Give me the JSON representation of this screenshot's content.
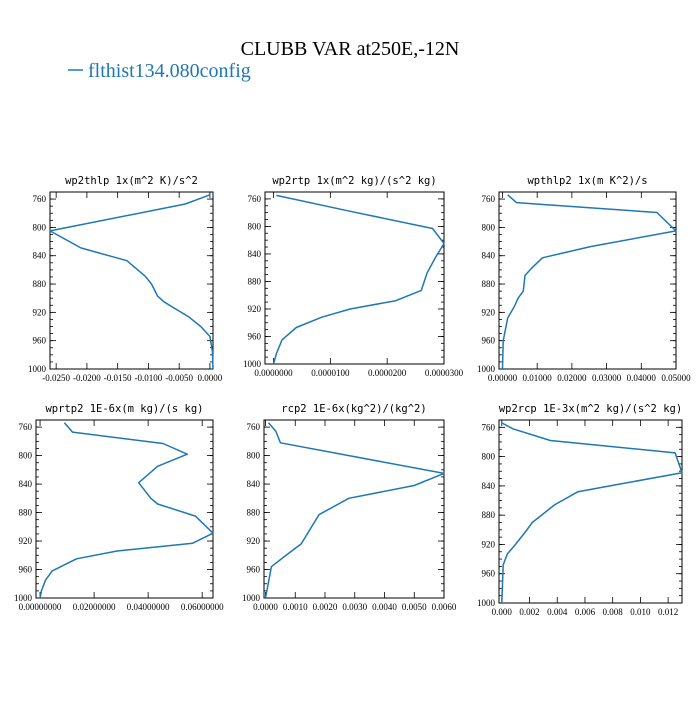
{
  "figure": {
    "title": "CLUBB VAR at250E,-12N",
    "legend_label": "flthist134.080config",
    "series_color": "#1f77b4"
  },
  "chart_data": [
    {
      "type": "line",
      "title": "wp2thlp   1x(m^2 K)/s^2",
      "xlim": [
        -0.026,
        0.0005
      ],
      "ylim": [
        1000,
        750
      ],
      "xticks": [
        -0.025,
        -0.02,
        -0.015,
        -0.01,
        -0.005,
        0.0
      ],
      "xtick_labels": [
        "-0.0250",
        "-0.0200",
        "-0.0150",
        "-0.0100",
        "-0.0050",
        "0.0000"
      ],
      "yticks": [
        760,
        800,
        840,
        880,
        920,
        960,
        1000
      ],
      "ytick_labels": [
        "760",
        "800",
        "840",
        "880",
        "920",
        "960",
        "1000"
      ],
      "points": [
        [
          0.0,
          754
        ],
        [
          -0.004,
          767
        ],
        [
          -0.026,
          805
        ],
        [
          -0.021,
          829
        ],
        [
          -0.0135,
          847
        ],
        [
          -0.0105,
          869
        ],
        [
          -0.0095,
          880
        ],
        [
          -0.0085,
          897
        ],
        [
          -0.0075,
          905
        ],
        [
          -0.006,
          913
        ],
        [
          -0.0035,
          926
        ],
        [
          -0.0015,
          940
        ],
        [
          0.0,
          954
        ],
        [
          0.0004,
          975
        ],
        [
          0.0005,
          1000
        ]
      ]
    },
    {
      "type": "line",
      "title": "wp2rtp  1x(m^2 kg)/(s^2 kg)",
      "xlim": [
        -1.5e-06,
        3e-05
      ],
      "ylim": [
        1000,
        750
      ],
      "xticks": [
        0.0,
        1e-05,
        2e-05,
        3e-05
      ],
      "xtick_labels": [
        "0.0000000",
        "0.0000100",
        "0.0000200",
        "0.0000300"
      ],
      "yticks": [
        760,
        800,
        840,
        880,
        920,
        960,
        1000
      ],
      "ytick_labels": [
        "760",
        "800",
        "840",
        "880",
        "920",
        "960",
        "1000"
      ],
      "points": [
        [
          5e-07,
          755
        ],
        [
          1.35e-05,
          778
        ],
        [
          2.8e-05,
          803
        ],
        [
          3e-05,
          825
        ],
        [
          2.85e-05,
          845
        ],
        [
          2.7e-05,
          868
        ],
        [
          2.6e-05,
          893
        ],
        [
          2.15e-05,
          908
        ],
        [
          1.35e-05,
          920
        ],
        [
          8.5e-06,
          932
        ],
        [
          4e-06,
          947
        ],
        [
          1.5e-06,
          965
        ],
        [
          5e-07,
          985
        ],
        [
          0.0,
          1000
        ]
      ]
    },
    {
      "type": "line",
      "title": "wpthlp2  1x(m K^2)/s",
      "xlim": [
        -0.001,
        0.05
      ],
      "ylim": [
        1000,
        750
      ],
      "xticks": [
        0.0,
        0.01,
        0.02,
        0.03,
        0.04,
        0.05
      ],
      "xtick_labels": [
        "0.00000",
        "0.01000",
        "0.02000",
        "0.03000",
        "0.04000",
        "0.05000"
      ],
      "yticks": [
        760,
        800,
        840,
        880,
        920,
        960,
        1000
      ],
      "ytick_labels": [
        "760",
        "800",
        "840",
        "880",
        "920",
        "960",
        "1000"
      ],
      "points": [
        [
          0.0015,
          754
        ],
        [
          0.004,
          765
        ],
        [
          0.0445,
          779
        ],
        [
          0.05,
          805
        ],
        [
          0.0255,
          827
        ],
        [
          0.0115,
          843
        ],
        [
          0.0085,
          857
        ],
        [
          0.0065,
          868
        ],
        [
          0.006,
          890
        ],
        [
          0.0045,
          900
        ],
        [
          0.0035,
          911
        ],
        [
          0.0015,
          928
        ],
        [
          0.0002,
          960
        ],
        [
          0.0,
          1000
        ]
      ]
    },
    {
      "type": "line",
      "title": "wprtp2  1E-6x(m kg)/(s kg)",
      "xlim": [
        -0.0015,
        0.064
      ],
      "ylim": [
        1000,
        750
      ],
      "xticks": [
        0.0,
        0.02,
        0.04,
        0.06
      ],
      "xtick_labels": [
        "0.00000000",
        "0.02000000",
        "0.04000000",
        "0.06000000"
      ],
      "yticks": [
        760,
        800,
        840,
        880,
        920,
        960,
        1000
      ],
      "ytick_labels": [
        "760",
        "800",
        "840",
        "880",
        "920",
        "960",
        "1000"
      ],
      "points": [
        [
          0.009,
          754
        ],
        [
          0.012,
          767
        ],
        [
          0.0455,
          783
        ],
        [
          0.0545,
          798
        ],
        [
          0.0435,
          815
        ],
        [
          0.0365,
          838
        ],
        [
          0.041,
          860
        ],
        [
          0.0435,
          868
        ],
        [
          0.0575,
          885
        ],
        [
          0.064,
          909
        ],
        [
          0.0565,
          923
        ],
        [
          0.0285,
          934
        ],
        [
          0.0135,
          945
        ],
        [
          0.0045,
          962
        ],
        [
          0.002,
          975
        ],
        [
          0.0005,
          990
        ],
        [
          0.0,
          1000
        ]
      ]
    },
    {
      "type": "line",
      "title": "rcp2  1E-6x(kg^2)/(kg^2)",
      "xlim": [
        -5e-05,
        0.006
      ],
      "ylim": [
        1000,
        750
      ],
      "xticks": [
        0.0,
        0.001,
        0.002,
        0.003,
        0.004,
        0.005,
        0.006
      ],
      "xtick_labels": [
        "0.0000",
        "0.0010",
        "0.0020",
        "0.0030",
        "0.0040",
        "0.0050",
        "0.0060"
      ],
      "yticks": [
        760,
        800,
        840,
        880,
        920,
        960,
        1000
      ],
      "ytick_labels": [
        "760",
        "800",
        "840",
        "880",
        "920",
        "960",
        "1000"
      ],
      "points": [
        [
          0.0001,
          754
        ],
        [
          0.00035,
          766
        ],
        [
          0.0005,
          782
        ],
        [
          0.006,
          825
        ],
        [
          0.005,
          842
        ],
        [
          0.0028,
          860
        ],
        [
          0.0018,
          883
        ],
        [
          0.0012,
          924
        ],
        [
          0.0006,
          943
        ],
        [
          0.0002,
          956
        ],
        [
          0.0,
          1000
        ]
      ]
    },
    {
      "type": "line",
      "title": "wp2rcp  1E-3x(m^2 kg)/(s^2 kg)",
      "xlim": [
        -0.0002,
        0.013
      ],
      "ylim": [
        1000,
        750
      ],
      "xticks": [
        0.0,
        0.002,
        0.004,
        0.006,
        0.008,
        0.01,
        0.012
      ],
      "xtick_labels": [
        "0.000",
        "0.002",
        "0.004",
        "0.006",
        "0.008",
        "0.010",
        "0.012"
      ],
      "yticks": [
        760,
        800,
        840,
        880,
        920,
        960,
        1000
      ],
      "ytick_labels": [
        "760",
        "800",
        "840",
        "880",
        "920",
        "960",
        "1000"
      ],
      "points": [
        [
          0.0,
          754
        ],
        [
          0.0008,
          762
        ],
        [
          0.0035,
          778
        ],
        [
          0.0125,
          795
        ],
        [
          0.013,
          822
        ],
        [
          0.0078,
          840
        ],
        [
          0.0055,
          848
        ],
        [
          0.0038,
          866
        ],
        [
          0.0022,
          890
        ],
        [
          0.0017,
          903
        ],
        [
          0.0009,
          922
        ],
        [
          0.0004,
          933
        ],
        [
          0.0001,
          948
        ],
        [
          0.0,
          1000
        ]
      ]
    }
  ]
}
